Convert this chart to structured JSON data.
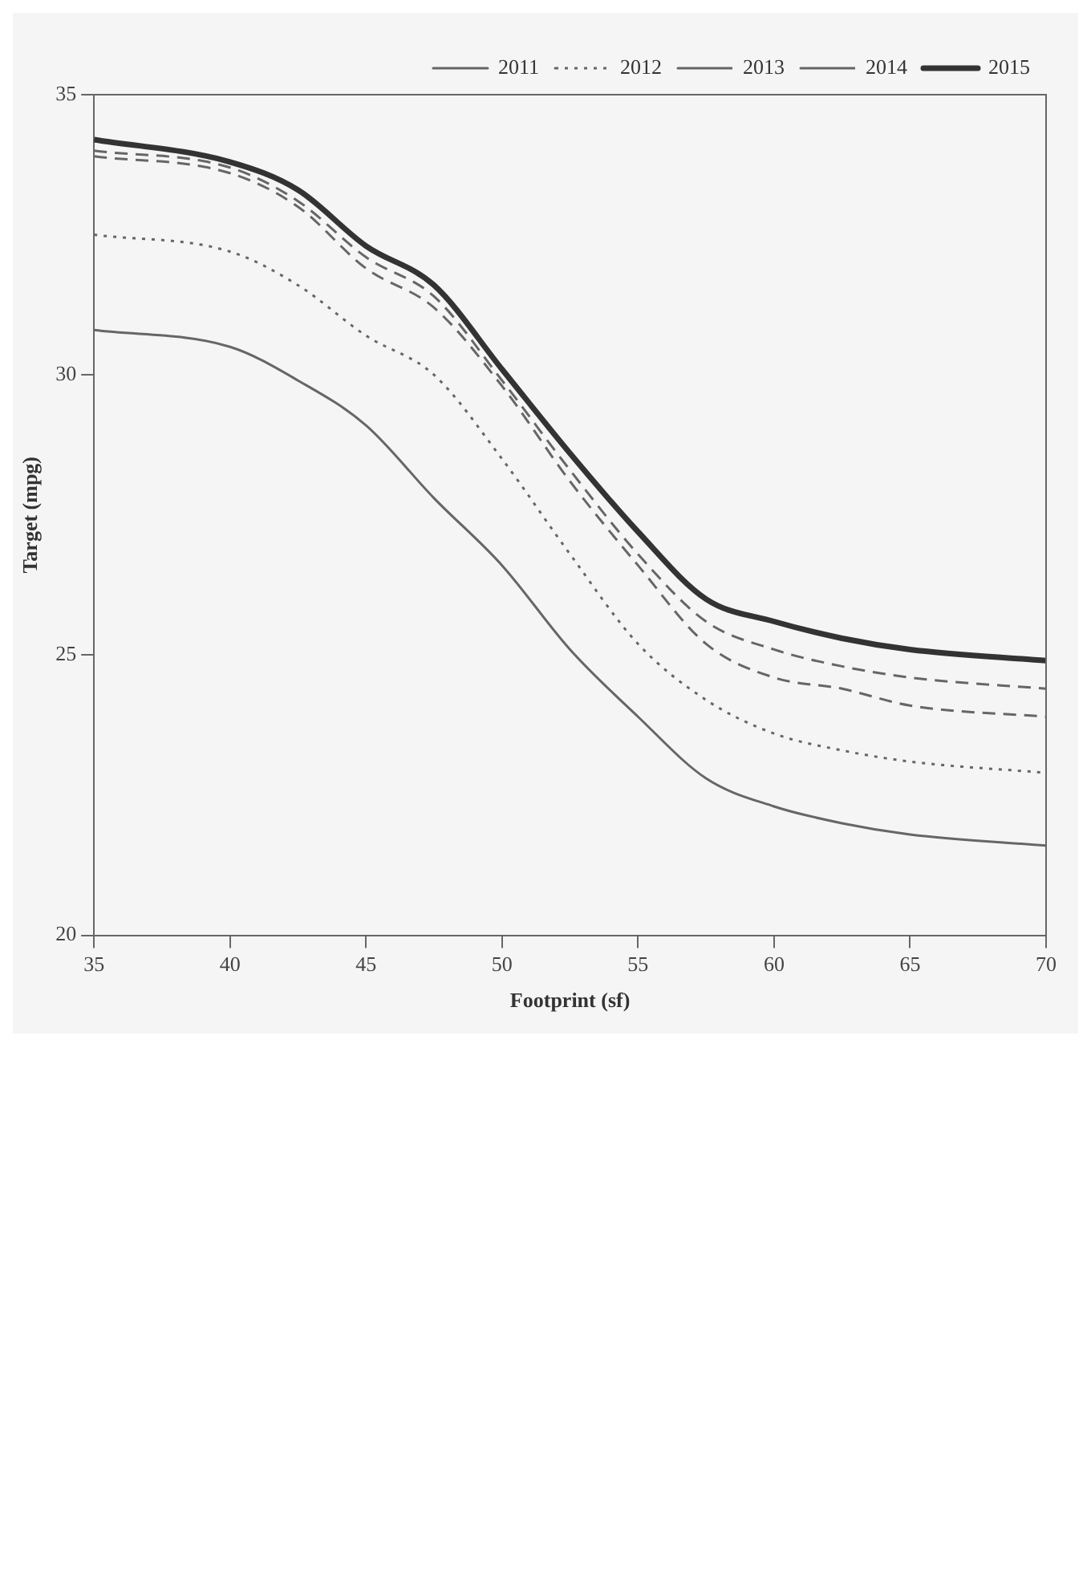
{
  "chart_data": {
    "type": "line",
    "xlabel": "Footprint (sf)",
    "ylabel": "Target (mpg)",
    "x": [
      35,
      40,
      42.5,
      45,
      47.5,
      50,
      52.5,
      55,
      57.5,
      60,
      62.5,
      65,
      70
    ],
    "xlim": [
      35,
      70
    ],
    "xticks": [
      35,
      40,
      45,
      50,
      55,
      60,
      65,
      70
    ],
    "ylim": [
      20,
      35
    ],
    "yticks": [
      20,
      25,
      30,
      35
    ],
    "grid": false,
    "legend": "top right",
    "marker": "none",
    "series": [
      {
        "name": "2011",
        "color": "#666666",
        "line_style": "solid",
        "values": [
          30.8,
          30.5,
          29.9,
          29.1,
          27.8,
          26.6,
          25.1,
          23.9,
          22.8,
          22.3,
          22.0,
          21.8,
          21.6
        ]
      },
      {
        "name": "2012",
        "color": "#666666",
        "line_style": "dotted",
        "values": [
          32.5,
          32.2,
          31.6,
          30.7,
          30.0,
          28.5,
          26.8,
          25.2,
          24.2,
          23.6,
          23.3,
          23.1,
          22.9
        ]
      },
      {
        "name": "2013",
        "color": "#666666",
        "line_style": "dashed",
        "values": [
          33.9,
          33.6,
          33.0,
          31.9,
          31.2,
          29.8,
          28.1,
          26.6,
          25.2,
          24.6,
          24.4,
          24.1,
          23.9
        ]
      },
      {
        "name": "2014",
        "color": "#666666",
        "line_style": "dashed",
        "values": [
          34.0,
          33.7,
          33.1,
          32.1,
          31.4,
          29.9,
          28.3,
          26.8,
          25.6,
          25.1,
          24.8,
          24.6,
          24.4
        ]
      },
      {
        "name": "2015",
        "color": "#333333",
        "line_style": "solid",
        "values": [
          34.2,
          33.8,
          33.3,
          32.3,
          31.6,
          30.1,
          28.6,
          27.2,
          26.0,
          25.6,
          25.3,
          25.1,
          24.9
        ]
      }
    ]
  }
}
